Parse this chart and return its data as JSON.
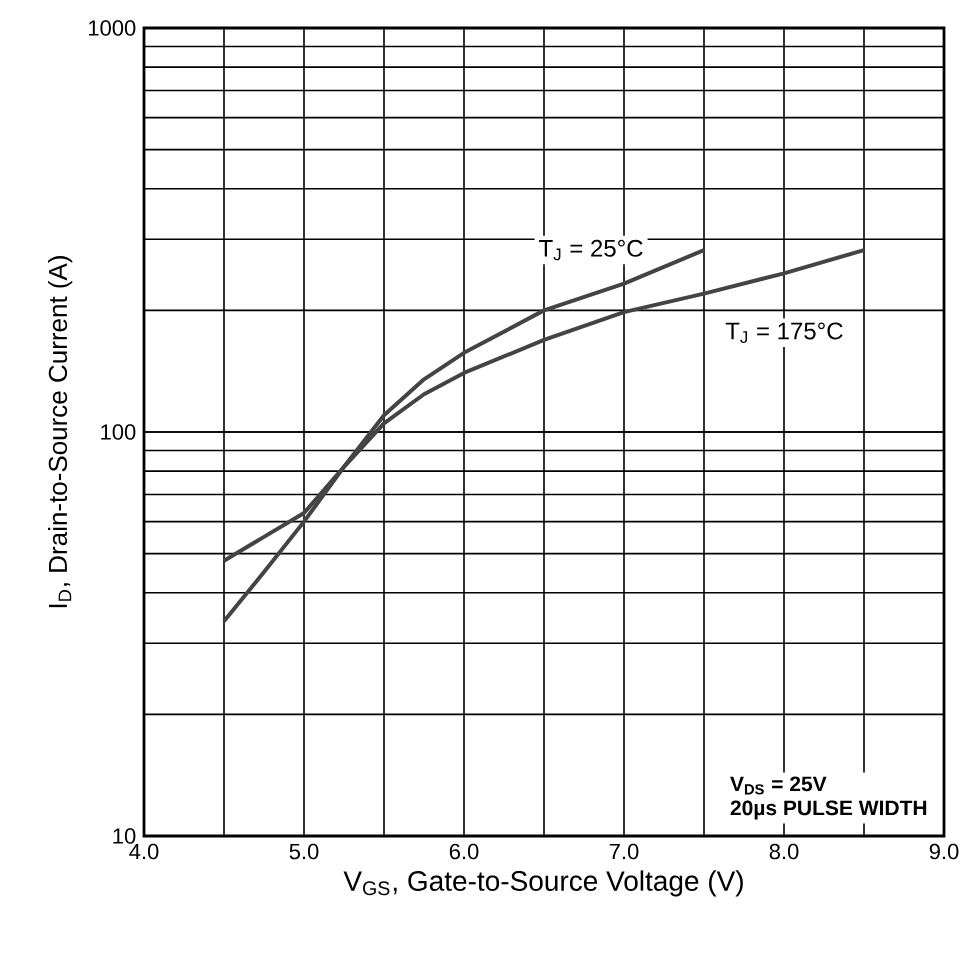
{
  "chart_data": {
    "type": "line",
    "xlabel": "V$_{GS}$, Gate-to-Source Voltage (V)",
    "ylabel": "I$_{D}$, Drain-to-Source Current (A)",
    "series": [
      {
        "name": "T$_{J}$ = 25°C",
        "color": "#444444",
        "x": [
          4.5,
          4.75,
          5.0,
          5.25,
          5.5,
          5.75,
          6.0,
          6.5,
          7.0,
          7.5
        ],
        "values": [
          34,
          45,
          60,
          82,
          110,
          135,
          157,
          200,
          233,
          282
        ]
      },
      {
        "name": "T$_{J}$ = 175°C",
        "color": "#444444",
        "x": [
          4.5,
          4.75,
          5.0,
          5.25,
          5.5,
          5.75,
          6.0,
          6.5,
          7.0,
          7.5,
          8.0,
          8.5
        ],
        "values": [
          48,
          55,
          63,
          82,
          105,
          124,
          140,
          169,
          198,
          220,
          247,
          282
        ]
      }
    ],
    "xlim": [
      4.0,
      9.0
    ],
    "ylim": [
      10,
      1000
    ],
    "xticks": [
      {
        "value": 4.0,
        "label": "4.0"
      },
      {
        "value": 5.0,
        "label": "5.0"
      },
      {
        "value": 6.0,
        "label": "6.0"
      },
      {
        "value": 7.0,
        "label": "7.0"
      },
      {
        "value": 8.0,
        "label": "8.0"
      },
      {
        "value": 9.0,
        "label": "9.0"
      }
    ],
    "yticks": [
      10,
      100,
      1000
    ],
    "log": "y",
    "grid": true,
    "line_style": "solid",
    "annotations": [
      "V$_{DS}$ = 25V",
      "20µs PULSE WIDTH"
    ]
  }
}
